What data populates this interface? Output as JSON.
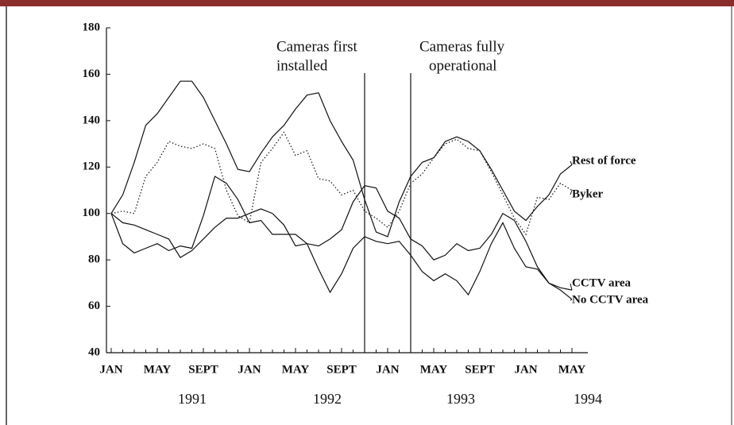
{
  "chart_data": {
    "type": "line",
    "categories": [
      "JAN",
      null,
      null,
      null,
      "MAY",
      null,
      null,
      null,
      "SEPT",
      null,
      null,
      null,
      "JAN",
      null,
      null,
      null,
      "MAY",
      null,
      null,
      null,
      "SEPT",
      null,
      null,
      null,
      "JAN",
      null,
      null,
      null,
      "MAY",
      null,
      null,
      null,
      "SEPT",
      null,
      null,
      null,
      "JAN",
      null,
      null,
      null,
      "MAY"
    ],
    "years": [
      "1991",
      "1992",
      "1993",
      "1994"
    ],
    "ylim": [
      40,
      180
    ],
    "yticks": [
      40,
      60,
      80,
      100,
      120,
      140,
      160,
      180
    ],
    "events": [
      {
        "lines": [
          "Cameras first",
          "installed"
        ],
        "x": 22
      },
      {
        "lines": [
          "Cameras fully",
          "operational"
        ],
        "x": 26
      }
    ],
    "series": [
      {
        "name": "Rest of force",
        "color": "#111111",
        "dash": "solid",
        "values": [
          100,
          108,
          122,
          138,
          143,
          150,
          157,
          157,
          150,
          140,
          130,
          119,
          118,
          126,
          133,
          138,
          145,
          151,
          152,
          140,
          131,
          123,
          106,
          92,
          90,
          105,
          116,
          122,
          124,
          131,
          133,
          131,
          127,
          119,
          110,
          101,
          97,
          103,
          108,
          117,
          121
        ]
      },
      {
        "name": "Byker",
        "color": "#111111",
        "dash": "dotted",
        "values": [
          100,
          101,
          100,
          116,
          122,
          131,
          129,
          128,
          130,
          128,
          110,
          99,
          96,
          122,
          128,
          135,
          125,
          127,
          115,
          114,
          108,
          110,
          101,
          98,
          94,
          101,
          113,
          117,
          124,
          130,
          132,
          128,
          127,
          118,
          108,
          98,
          91,
          107,
          106,
          113,
          110
        ]
      },
      {
        "name": "CCTV area",
        "color": "#111111",
        "dash": "solid",
        "values": [
          100,
          96,
          95,
          93,
          91,
          89,
          81,
          84,
          89,
          94,
          98,
          98,
          100,
          102,
          100,
          95,
          86,
          87,
          86,
          89,
          93,
          105,
          112,
          111,
          101,
          98,
          89,
          86,
          80,
          82,
          87,
          84,
          85,
          91,
          100,
          97,
          88,
          77,
          70,
          68,
          67
        ]
      },
      {
        "name": "No CCTV area",
        "color": "#111111",
        "dash": "solid",
        "values": [
          100,
          87,
          83,
          85,
          87,
          84,
          86,
          85,
          99,
          116,
          113,
          106,
          96,
          97,
          91,
          91,
          91,
          87,
          76,
          66,
          74,
          85,
          90,
          88,
          87,
          88,
          82,
          75,
          71,
          74,
          71,
          65,
          75,
          87,
          96,
          85,
          77,
          76,
          70,
          67,
          63
        ]
      }
    ]
  }
}
